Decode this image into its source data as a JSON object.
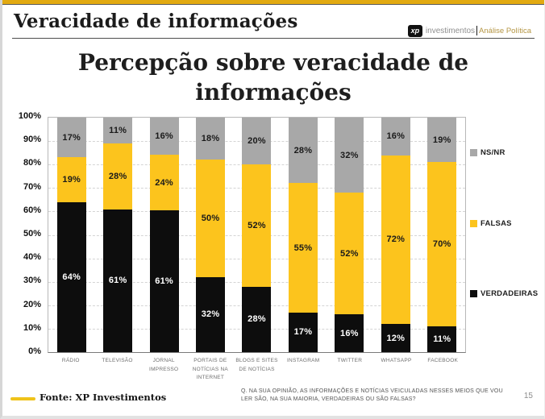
{
  "header": {
    "title": "Veracidade de informações",
    "logo": {
      "mark": "xp",
      "investimentos": "investimentos",
      "analise_politica": "Análise Política"
    }
  },
  "footer": {
    "fonte": "Fonte: XP Investimentos",
    "question_line1": "Q. NA SUA OPINIÃO, AS INFORMAÇÕES E NOTÍCIAS VEICULADAS NESSES MEIOS QUE VOU",
    "question_line2": "LER SÃO, NA SUA MAIORIA, VERDADEIRAS OU SÃO FALSAS?",
    "page": "15"
  },
  "colors": {
    "accent_gold": "#E2AA11",
    "fonte_marker_gold": "#EFC31A",
    "bar_black": "#0d0d0d",
    "bar_yellow": "#FCC41D",
    "bar_gray": "#A8A8A8"
  },
  "chart_data": {
    "type": "bar",
    "stacked": true,
    "title": "Percepção sobre veracidade de informações",
    "title_lines": [
      "Percepção sobre veracidade de",
      "informações"
    ],
    "xlabel": "",
    "ylabel": "",
    "ylim": [
      0,
      100
    ],
    "grid": "horizontal-dashed",
    "legend_position": "right",
    "y_ticks": [
      "0%",
      "10%",
      "20%",
      "30%",
      "40%",
      "50%",
      "60%",
      "70%",
      "80%",
      "90%",
      "100%"
    ],
    "categories": [
      "RÁDIO",
      "TELEVISÃO",
      "JORNAL IMPRESSO",
      "PORTAIS DE NOTÍCIAS NA INTERNET",
      "BLOGS E SITES DE NOTÍCIAS",
      "INSTAGRAM",
      "TWITTER",
      "WHATSAPP",
      "FACEBOOK"
    ],
    "category_display": [
      "RÁDIO",
      "TELEVISÃO",
      "JORNAL\nIMPRESSO",
      "PORTAIS DE\nNOTÍCIAS NA\nINTERNET",
      "BLOGS E SITES\nDE NOTÍCIAS",
      "INSTAGRAM",
      "TWITTER",
      "WHATSAPP",
      "FACEBOOK"
    ],
    "series": [
      {
        "name": "VERDADEIRAS",
        "color": "#0d0d0d",
        "label_color": "#ffffff",
        "values": [
          64,
          61,
          61,
          32,
          28,
          17,
          16,
          12,
          11
        ]
      },
      {
        "name": "FALSAS",
        "color": "#FCC41D",
        "label_color": "#1a1a1a",
        "values": [
          19,
          28,
          24,
          50,
          52,
          55,
          52,
          72,
          70
        ]
      },
      {
        "name": "NS/NR",
        "color": "#A8A8A8",
        "label_color": "#1a1a1a",
        "values": [
          17,
          11,
          16,
          18,
          20,
          28,
          32,
          16,
          19
        ]
      }
    ],
    "legend": [
      "NS/NR",
      "FALSAS",
      "VERDADEIRAS"
    ]
  }
}
